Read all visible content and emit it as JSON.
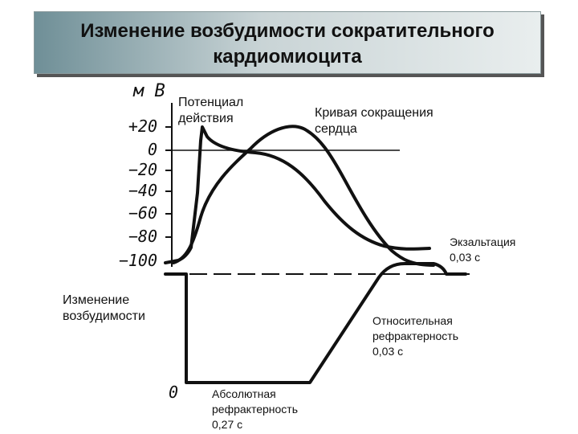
{
  "title": {
    "line1": "Изменение возбудимости сократительного",
    "line2": "кардиомиоцита"
  },
  "axis": {
    "unit": "м В",
    "ticks": [
      "+20",
      "0",
      "−20",
      "−40",
      "−60",
      "−80",
      "−100"
    ],
    "lower_zero": "0"
  },
  "labels": {
    "action_potential_1": "Потенциал",
    "action_potential_2": "действия",
    "contraction_1": "Кривая сокращения",
    "contraction_2": "сердца",
    "excitability_1": "Изменение",
    "excitability_2": "возбудимости",
    "exaltation_1": "Экзальтация",
    "exaltation_2": "0,03 с",
    "relative_1": "Относительная",
    "relative_2": "рефрактерность",
    "relative_3": "0,03 с",
    "absolute_1": "Абсолютная",
    "absolute_2": "рефрактерность",
    "absolute_3": "0,27 с"
  }
}
